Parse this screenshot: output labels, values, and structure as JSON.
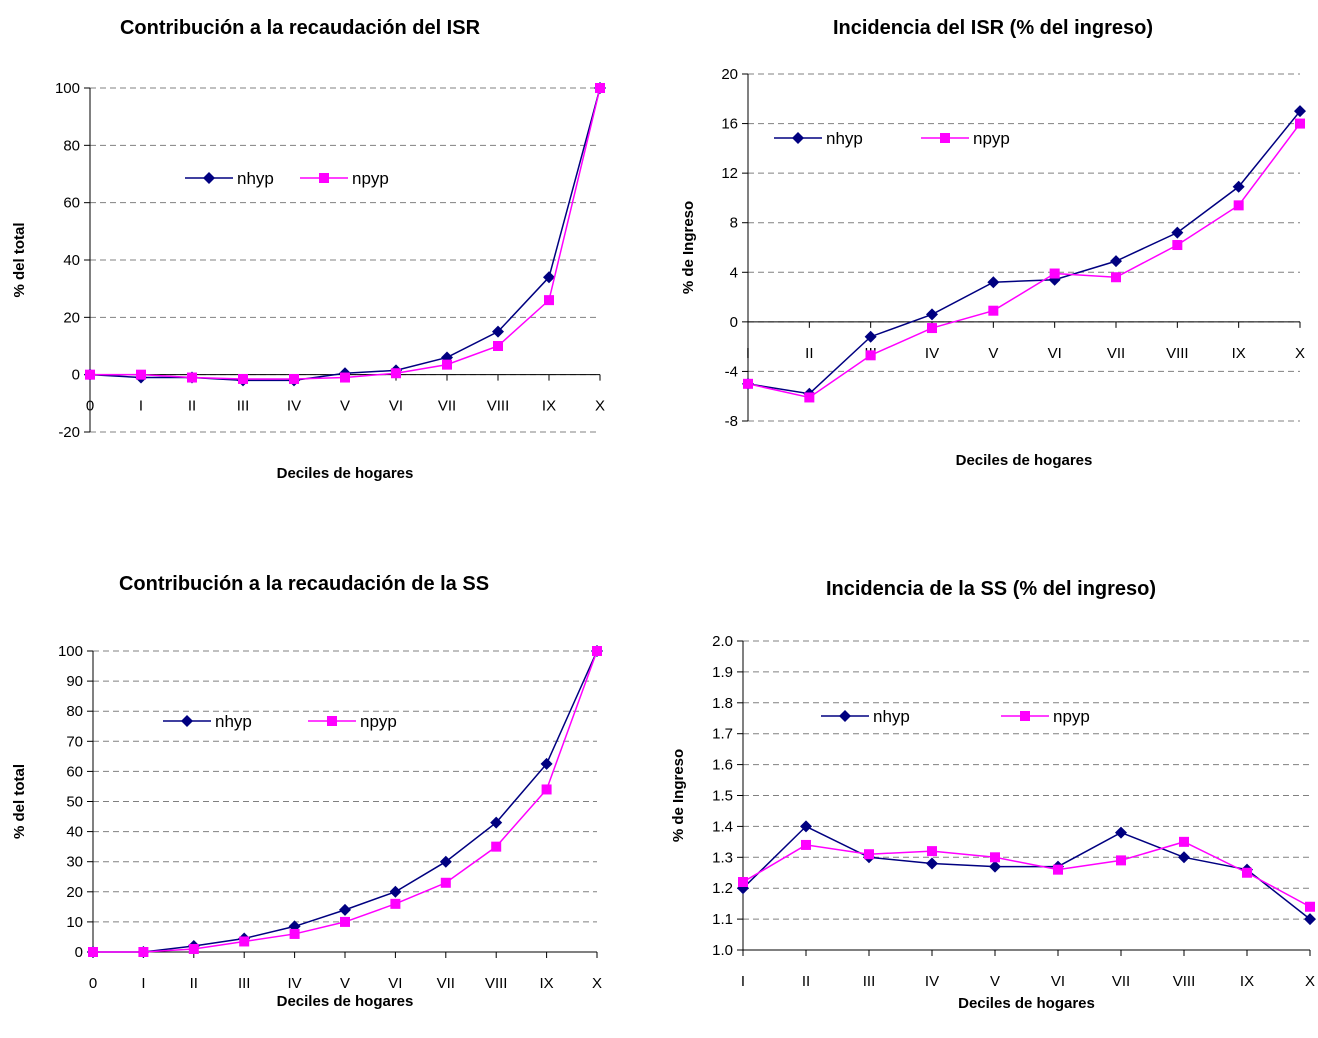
{
  "colors": {
    "nhyp": "#000080",
    "npyp": "#ff00ff",
    "grid": "#808080",
    "axis": "#000000"
  },
  "chart_data": [
    {
      "type": "line",
      "title": "Contribución a la recaudación del ISR",
      "xlabel": "Deciles de hogares",
      "ylabel": "% del total",
      "categories": [
        "0",
        "I",
        "II",
        "III",
        "IV",
        "V",
        "VI",
        "VII",
        "VIII",
        "IX",
        "X"
      ],
      "yticks": [
        -20,
        0,
        20,
        40,
        60,
        80,
        100
      ],
      "ylim": [
        -20,
        100
      ],
      "grid": true,
      "legend": "upper-left",
      "series": [
        {
          "name": "nhyp",
          "marker": "diamond",
          "values": [
            0,
            -1,
            -1,
            -2,
            -2,
            0.5,
            1.5,
            6,
            15,
            34,
            100
          ]
        },
        {
          "name": "npyp",
          "marker": "square",
          "values": [
            0,
            0,
            -1,
            -1.5,
            -1.5,
            -1,
            0.5,
            3.5,
            10,
            26,
            100
          ]
        }
      ]
    },
    {
      "type": "line",
      "title": "Incidencia del ISR (% del ingreso)",
      "xlabel": "Deciles de hogares",
      "ylabel": "% de Ingreso",
      "categories": [
        "I",
        "II",
        "III",
        "IV",
        "V",
        "VI",
        "VII",
        "VIII",
        "IX",
        "X"
      ],
      "yticks": [
        -8,
        -4,
        0,
        4,
        8,
        12,
        16,
        20
      ],
      "ylim": [
        -8,
        20
      ],
      "grid": true,
      "legend": "upper-left",
      "series": [
        {
          "name": "nhyp",
          "marker": "diamond",
          "values": [
            -5,
            -5.8,
            -1.2,
            0.6,
            3.2,
            3.4,
            4.9,
            7.2,
            10.9,
            17
          ]
        },
        {
          "name": "npyp",
          "marker": "square",
          "values": [
            -5,
            -6.1,
            -2.7,
            -0.5,
            0.9,
            3.9,
            3.6,
            6.2,
            9.4,
            16
          ]
        }
      ]
    },
    {
      "type": "line",
      "title": "Contribución a la recaudación de la SS",
      "xlabel": "Deciles de hogares",
      "ylabel": "% del total",
      "categories": [
        "0",
        "I",
        "II",
        "III",
        "IV",
        "V",
        "VI",
        "VII",
        "VIII",
        "IX",
        "X"
      ],
      "yticks": [
        0,
        10,
        20,
        30,
        40,
        50,
        60,
        70,
        80,
        90,
        100
      ],
      "ylim": [
        0,
        100
      ],
      "grid": true,
      "legend": "upper-left",
      "series": [
        {
          "name": "nhyp",
          "marker": "diamond",
          "values": [
            0,
            0,
            2,
            4.5,
            8.5,
            14,
            20,
            30,
            43,
            62.5,
            100
          ]
        },
        {
          "name": "npyp",
          "marker": "square",
          "values": [
            0,
            0,
            1,
            3.5,
            6,
            10,
            16,
            23,
            35,
            54,
            100
          ]
        }
      ]
    },
    {
      "type": "line",
      "title": "Incidencia de la SS (% del ingreso)",
      "xlabel": "Deciles de hogares",
      "ylabel": "% de Ingreso",
      "categories": [
        "I",
        "II",
        "III",
        "IV",
        "V",
        "VI",
        "VII",
        "VIII",
        "IX",
        "X"
      ],
      "yticks": [
        1.0,
        1.1,
        1.2,
        1.3,
        1.4,
        1.5,
        1.6,
        1.7,
        1.8,
        1.9,
        2.0
      ],
      "ylim": [
        1.0,
        2.0
      ],
      "tick_decimals": 1,
      "grid": true,
      "legend": "upper-left",
      "series": [
        {
          "name": "nhyp",
          "marker": "diamond",
          "values": [
            1.2,
            1.4,
            1.3,
            1.28,
            1.27,
            1.27,
            1.38,
            1.3,
            1.26,
            1.1
          ]
        },
        {
          "name": "npyp",
          "marker": "square",
          "values": [
            1.22,
            1.34,
            1.31,
            1.32,
            1.3,
            1.26,
            1.29,
            1.35,
            1.25,
            1.14
          ]
        }
      ]
    }
  ]
}
